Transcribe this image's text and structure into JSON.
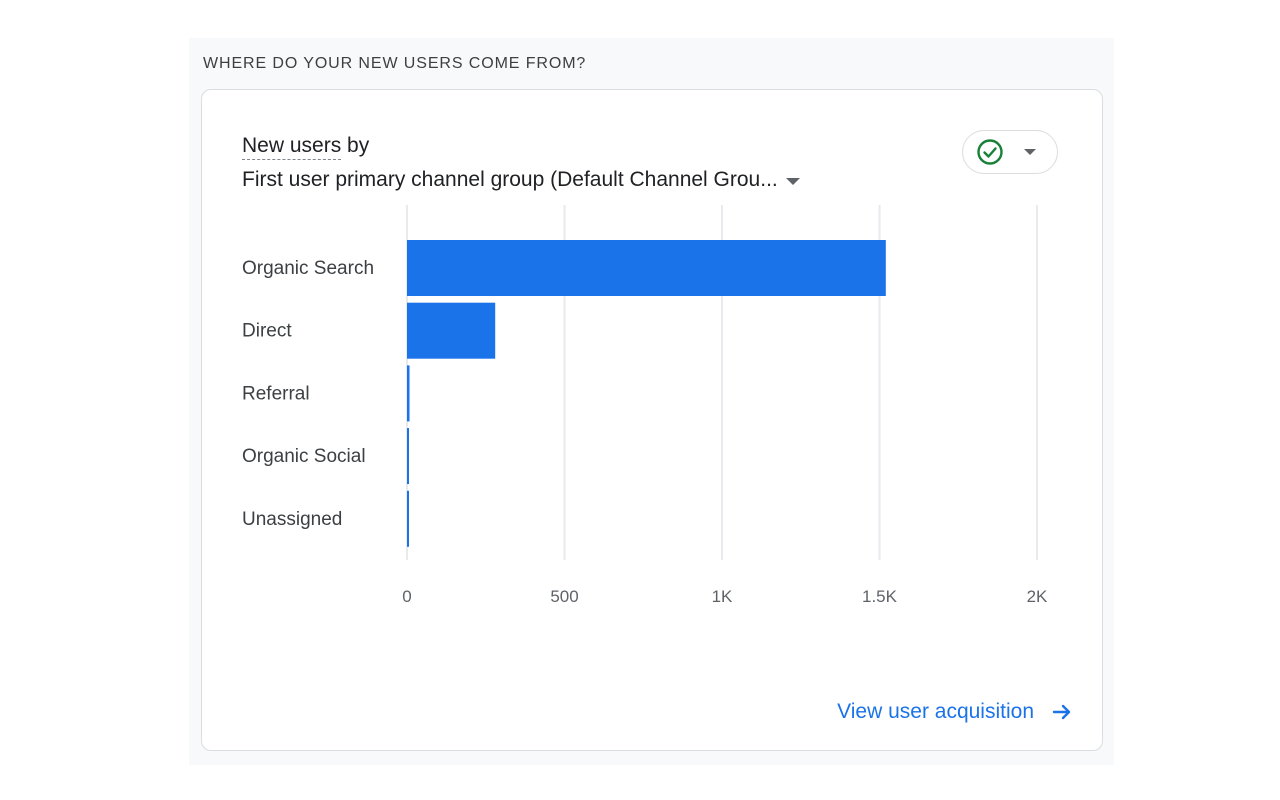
{
  "section_title": "WHERE DO YOUR NEW USERS COME FROM?",
  "card": {
    "title_metric": "New users",
    "title_by": " by",
    "dimension": "First user primary channel group (Default Channel Grou...",
    "status_icon": "check-circle-icon",
    "status_caret_icon": "chevron-down-icon"
  },
  "footer": {
    "link_label": "View user acquisition",
    "link_icon": "arrow-right-icon"
  },
  "colors": {
    "bar": "#1a73e8",
    "grid": "#e8eaed",
    "link": "#1a73e8",
    "check": "#188038"
  },
  "chart_data": {
    "type": "bar",
    "orientation": "horizontal",
    "categories": [
      "Organic Search",
      "Direct",
      "Referral",
      "Organic Social",
      "Unassigned"
    ],
    "values": [
      1520,
      280,
      8,
      3,
      2
    ],
    "xlim": [
      0,
      2000
    ],
    "x_ticks": [
      0,
      500,
      1000,
      1500,
      2000
    ],
    "x_tick_labels": [
      "0",
      "500",
      "1K",
      "1.5K",
      "2K"
    ],
    "grid": true,
    "legend": "none"
  }
}
